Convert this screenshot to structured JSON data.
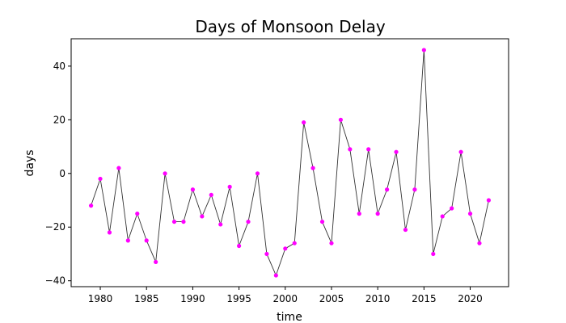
{
  "chart_data": {
    "type": "line",
    "title": "Days of Monsoon Delay",
    "xlabel": "time",
    "ylabel": "days",
    "xlim": [
      1976.85,
      2024.15
    ],
    "ylim": [
      -42.2,
      50.2
    ],
    "xticks": [
      1980,
      1985,
      1990,
      1995,
      2000,
      2005,
      2010,
      2015,
      2020
    ],
    "yticks": [
      -40,
      -20,
      0,
      20,
      40
    ],
    "xtick_labels": [
      "1980",
      "1985",
      "1990",
      "1995",
      "2000",
      "2005",
      "2010",
      "2015",
      "2020"
    ],
    "ytick_labels": [
      "−40",
      "−20",
      "0",
      "20",
      "40"
    ],
    "grid": false,
    "line_color": "#333333",
    "marker_color": "#ff00ff",
    "series": [
      {
        "x": [
          1979,
          1980,
          1981,
          1982,
          1983,
          1984,
          1985,
          1986,
          1987,
          1988,
          1989,
          1990,
          1991,
          1992,
          1993,
          1994,
          1995,
          1996,
          1997,
          1998,
          1999,
          2000,
          2001,
          2002,
          2003,
          2004,
          2005,
          2006,
          2007,
          2008,
          2009,
          2010,
          2011,
          2012,
          2013,
          2014,
          2015,
          2016,
          2017,
          2018,
          2019,
          2020,
          2021,
          2022
        ],
        "y": [
          -12,
          -2,
          -22,
          2,
          -25,
          -15,
          -25,
          -33,
          0,
          -18,
          -18,
          -6,
          -16,
          -8,
          -19,
          -5,
          -27,
          -18,
          0,
          -30,
          -38,
          -28,
          -26,
          19,
          2,
          -18,
          -26,
          20,
          9,
          -15,
          9,
          -15,
          -6,
          8,
          -21,
          -6,
          46,
          -30,
          -16,
          -13,
          8,
          -15,
          -26,
          -10
        ]
      }
    ]
  }
}
